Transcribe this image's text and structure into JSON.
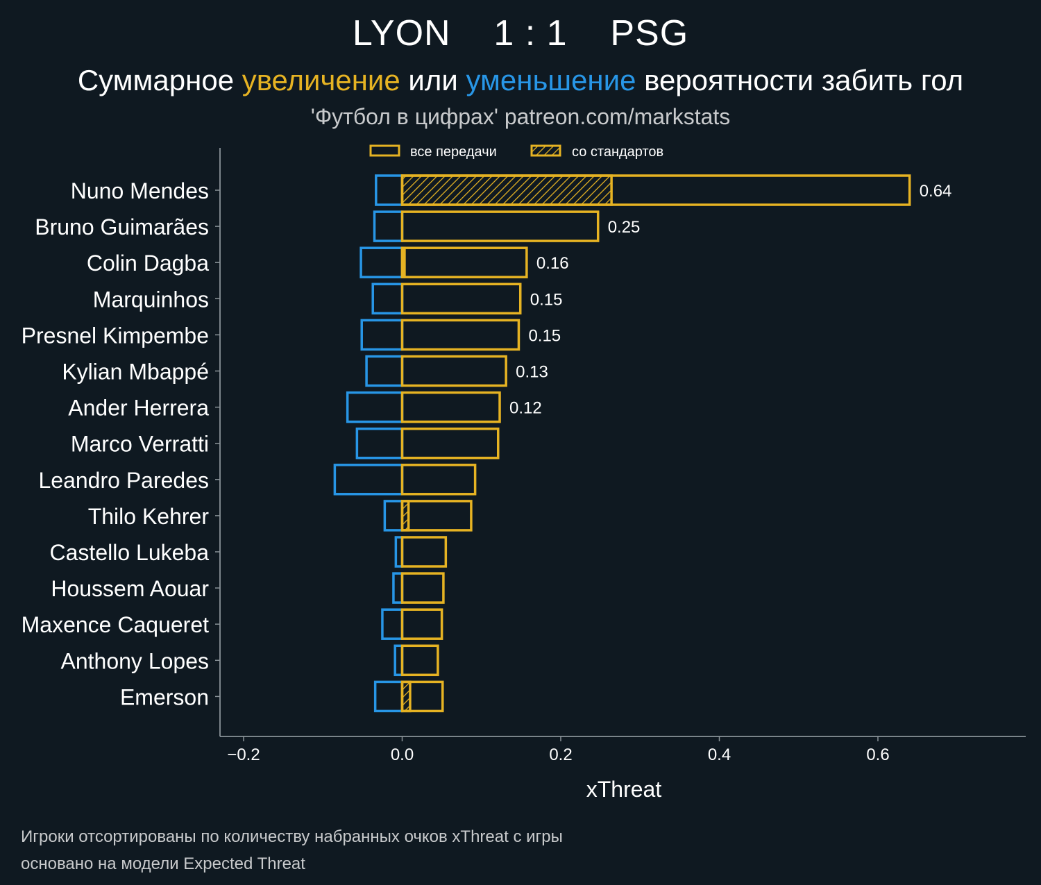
{
  "header": {
    "title": "LYON    1 : 1    PSG",
    "subtitle_part1": "Суммарное ",
    "subtitle_inc": "увеличение",
    "subtitle_part2": " или ",
    "subtitle_dec": "уменьшение",
    "subtitle_part3": " вероятности забить гол",
    "source": "'Футбол в цифрах' patreon.com/markstats"
  },
  "footnote": {
    "line1": "Игроки отсортированы по количеству набранных очков xThreat с игры",
    "line2": "основано на модели Expected Threat"
  },
  "colors": {
    "background": "#0f1921",
    "increase": "#e6b323",
    "decrease": "#2896e6",
    "axis": "#8a9399"
  },
  "chart_data": {
    "type": "bar",
    "orientation": "horizontal",
    "xlabel": "xThreat",
    "xlim": [
      -0.2,
      0.75
    ],
    "xticks": [
      -0.2,
      0.0,
      0.2,
      0.4,
      0.6
    ],
    "xtick_labels": [
      "−0.2",
      "0.0",
      "0.2",
      "0.4",
      "0.6"
    ],
    "legend": {
      "placement": "top-center",
      "entries": [
        {
          "label": "все передачи",
          "style": "outline"
        },
        {
          "label": "со стандартов",
          "style": "hatched"
        }
      ]
    },
    "categories": [
      "Nuno Mendes",
      "Bruno Guimarães",
      "Colin Dagba",
      "Marquinhos",
      "Presnel Kimpembe",
      "Kylian Mbappé",
      "Ander Herrera",
      "Marco Verratti",
      "Leandro Paredes",
      "Thilo Kehrer",
      "Castello Lukeba",
      "Houssem Aouar",
      "Maxence Caqueret",
      "Anthony Lopes",
      "Emerson"
    ],
    "series": [
      {
        "name": "увеличение",
        "values": [
          0.64,
          0.247,
          0.157,
          0.149,
          0.147,
          0.131,
          0.123,
          0.121,
          0.092,
          0.087,
          0.055,
          0.052,
          0.05,
          0.045,
          0.051
        ]
      },
      {
        "name": "уменьшение",
        "values": [
          -0.033,
          -0.035,
          -0.052,
          -0.037,
          -0.051,
          -0.045,
          -0.069,
          -0.057,
          -0.085,
          -0.022,
          -0.008,
          -0.011,
          -0.025,
          -0.009,
          -0.034
        ]
      },
      {
        "name": "со стандартов",
        "values": [
          0.264,
          0,
          0.003,
          0,
          0,
          0,
          0,
          0,
          0,
          0.008,
          0,
          0,
          0,
          0,
          0.01
        ]
      }
    ],
    "value_labels": [
      "0.64",
      "0.25",
      "0.16",
      "0.15",
      "0.15",
      "0.13",
      "0.12",
      null,
      null,
      null,
      null,
      null,
      null,
      null,
      null
    ]
  }
}
